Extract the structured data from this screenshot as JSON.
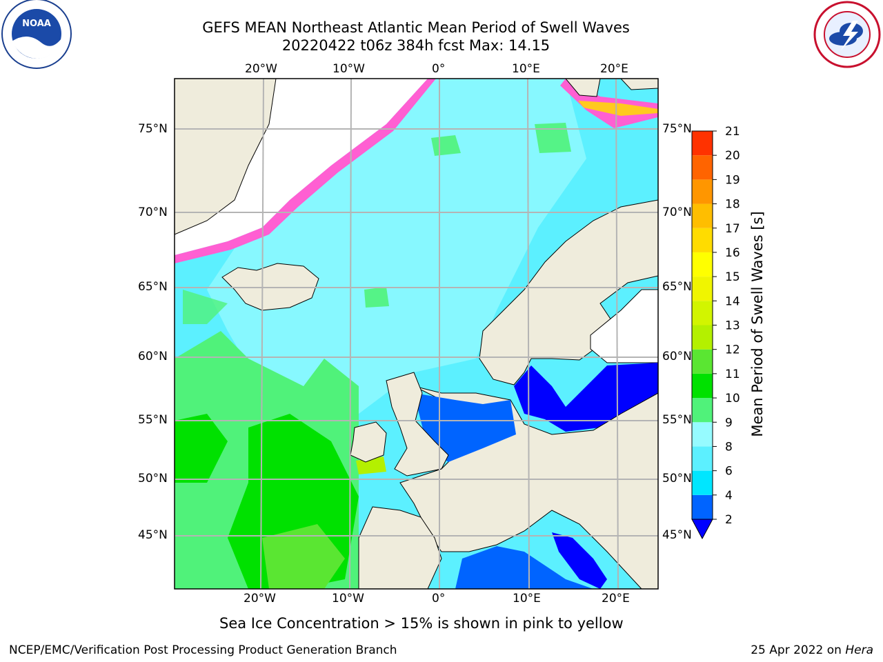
{
  "header": {
    "title_line1": "GEFS MEAN Northeast Atlantic Mean Period of Swell Waves",
    "title_line2": "20220422 t06z 384h fcst   Max: 14.15"
  },
  "logos": {
    "left": "NOAA",
    "right": "NATIONAL WEATHER SERVICE"
  },
  "map": {
    "lon_labels": [
      "20°W",
      "10°W",
      "0°",
      "10°E",
      "20°E"
    ],
    "lat_labels": [
      "75°N",
      "70°N",
      "65°N",
      "60°N",
      "55°N",
      "50°N",
      "45°N"
    ],
    "land_color": "#efecdc",
    "ocean_color": "#5cf0ff",
    "grid_color": "#b4b4b4"
  },
  "colorbar": {
    "label": "Mean Period of Swell Waves [s]",
    "ticks": [
      "2",
      "4",
      "6",
      "8",
      "9",
      "10",
      "11",
      "12",
      "13",
      "14",
      "15",
      "16",
      "17",
      "18",
      "19",
      "20",
      "21"
    ],
    "colors": [
      "#0064ff",
      "#00e6ff",
      "#5cf0ff",
      "#96fbff",
      "#50f27a",
      "#00e100",
      "#5ae632",
      "#b4f000",
      "#d2f500",
      "#f0f500",
      "#ffff00",
      "#ffdc00",
      "#ffbe00",
      "#ff9600",
      "#ff6400",
      "#ff3200",
      "#ff0000"
    ],
    "under_color": "#0000ff"
  },
  "subtitle": "Sea Ice Concentration > 15% is shown in pink to yellow",
  "footer": {
    "left": "NCEP/EMC/Verification Post Processing Product Generation Branch",
    "right_date": "25 Apr 2022 on ",
    "right_host": "Hera"
  }
}
